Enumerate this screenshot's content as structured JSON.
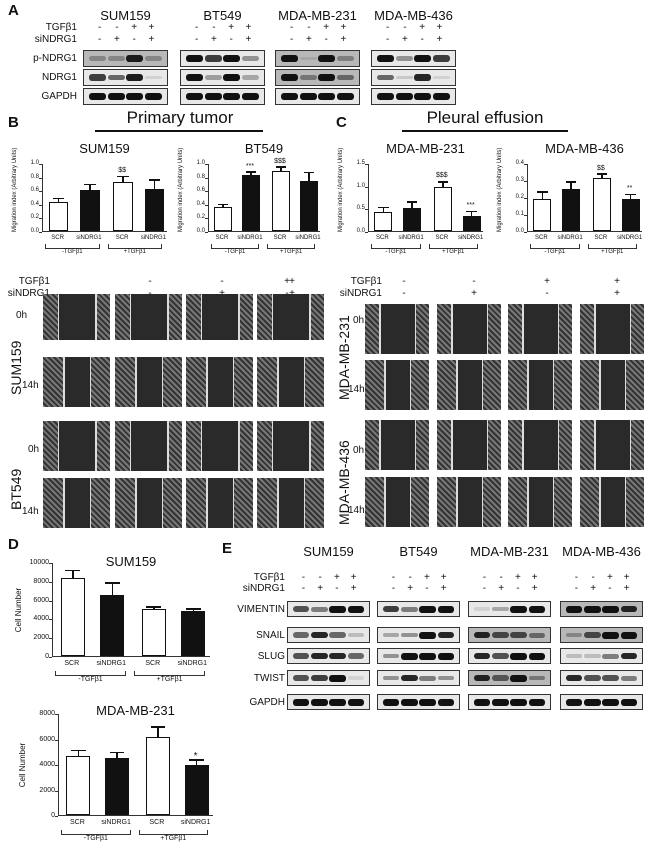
{
  "panelA": {
    "letter": "A",
    "cell_lines": [
      "SUM159",
      "BT549",
      "MDA-MB-231",
      "MDA-MB-436"
    ],
    "treatment_labels": {
      "tgf": "TGFβ1",
      "sindrg1": "siNDRG1"
    },
    "tgf_signs": [
      "-",
      "-",
      "+",
      "+"
    ],
    "sindrg1_signs": [
      "-",
      "+",
      "-",
      "+"
    ],
    "rows": [
      "p-NDRG1",
      "NDRG1",
      "GAPDH"
    ]
  },
  "panelB": {
    "letter": "B",
    "section_title": "Primary tumor"
  },
  "panelC": {
    "letter": "C",
    "section_title": "Pleural effusion"
  },
  "scratch": {
    "tgf_label": "TGFβ1",
    "sindrg1_label": "siNDRG1",
    "tgf_signs": [
      "-",
      "-",
      "+",
      "+"
    ],
    "sindrg1_signs": [
      "-",
      "+",
      "-",
      "+"
    ],
    "left_cell_lines": [
      "SUM159",
      "BT549"
    ],
    "right_cell_lines": [
      "MDA-MB-231",
      "MDA-MB-436"
    ],
    "times": [
      "0h",
      "14h"
    ]
  },
  "panelD": {
    "letter": "D"
  },
  "panelE": {
    "letter": "E",
    "cell_lines": [
      "SUM159",
      "BT549",
      "MDA-MB-231",
      "MDA-MB-436"
    ],
    "treatment_labels": {
      "tgf": "TGFβ1",
      "sindrg1": "siNDRG1"
    },
    "tgf_signs": [
      "-",
      "-",
      "+",
      "+"
    ],
    "sindrg1_signs": [
      "-",
      "+",
      "-",
      "+"
    ],
    "rows": [
      "VIMENTIN",
      "SNAIL",
      "SLUG",
      "TWIST",
      "GAPDH"
    ]
  },
  "chart_data": [
    {
      "id": "B-SUM159",
      "type": "bar",
      "title": "SUM159",
      "ylabel": "Migration index (Arbitrary Units)",
      "ylim": [
        0,
        1.0
      ],
      "yticks": [
        "0.0",
        "0.2",
        "0.4",
        "0.6",
        "0.8",
        "1.0"
      ],
      "categories": [
        "SCR",
        "siNDRG1",
        "SCR",
        "siNDRG1"
      ],
      "groups": [
        "-TGFβ1",
        "+TGFβ1"
      ],
      "values": [
        0.42,
        0.6,
        0.72,
        0.62
      ],
      "errors": [
        0.05,
        0.07,
        0.07,
        0.12
      ],
      "fills": [
        "white",
        "black",
        "white",
        "black"
      ],
      "annotations": [
        "",
        "",
        "$$",
        ""
      ]
    },
    {
      "id": "B-BT549",
      "type": "bar",
      "title": "BT549",
      "ylabel": "Migration index (Arbitrary Units)",
      "ylim": [
        0,
        1.0
      ],
      "yticks": [
        "0.0",
        "0.2",
        "0.4",
        "0.6",
        "0.8",
        "1.0"
      ],
      "categories": [
        "SCR",
        "siNDRG1",
        "SCR",
        "siNDRG1"
      ],
      "groups": [
        "-TGFβ1",
        "+TGFβ1"
      ],
      "values": [
        0.35,
        0.82,
        0.88,
        0.74
      ],
      "errors": [
        0.03,
        0.04,
        0.05,
        0.11
      ],
      "fills": [
        "white",
        "black",
        "white",
        "black"
      ],
      "annotations": [
        "",
        "***",
        "$$$",
        ""
      ]
    },
    {
      "id": "C-MDA-MB-231",
      "type": "bar",
      "title": "MDA-MB-231",
      "ylabel": "Migration index (Arbitrary Units)",
      "ylim": [
        0,
        1.5
      ],
      "yticks": [
        "0.0",
        "0.5",
        "1.0",
        "1.5"
      ],
      "categories": [
        "SCR",
        "siNDRG1",
        "SCR",
        "siNDRG1"
      ],
      "groups": [
        "-TGFβ1",
        "+TGFβ1"
      ],
      "values": [
        0.43,
        0.5,
        0.97,
        0.33
      ],
      "errors": [
        0.07,
        0.12,
        0.1,
        0.08
      ],
      "fills": [
        "white",
        "black",
        "white",
        "black"
      ],
      "annotations": [
        "",
        "",
        "$$$",
        "***"
      ]
    },
    {
      "id": "C-MDA-MB-436",
      "type": "bar",
      "title": "MDA-MB-436",
      "ylabel": "Migration index (Arbitrary Units)",
      "ylim": [
        0,
        0.4
      ],
      "yticks": [
        "0.0",
        "0.1",
        "0.2",
        "0.3",
        "0.4"
      ],
      "categories": [
        "SCR",
        "siNDRG1",
        "SCR",
        "siNDRG1"
      ],
      "groups": [
        "-TGFβ1",
        "+TGFβ1"
      ],
      "values": [
        0.19,
        0.25,
        0.31,
        0.19
      ],
      "errors": [
        0.035,
        0.035,
        0.02,
        0.02
      ],
      "fills": [
        "white",
        "black",
        "white",
        "black"
      ],
      "annotations": [
        "",
        "",
        "$$",
        "**"
      ]
    },
    {
      "id": "D-SUM159",
      "type": "bar",
      "title": "SUM159",
      "ylabel": "Cell Number",
      "ylim": [
        0,
        10000
      ],
      "yticks": [
        "0",
        "2000",
        "4000",
        "6000",
        "8000",
        "10000"
      ],
      "categories": [
        "SCR",
        "siNDRG1",
        "SCR",
        "siNDRG1"
      ],
      "groups": [
        "-TGFβ1",
        "+TGFβ1"
      ],
      "values": [
        8250,
        6450,
        4950,
        4800
      ],
      "errors": [
        750,
        1250,
        200,
        100
      ],
      "fills": [
        "white",
        "black",
        "white",
        "black"
      ],
      "annotations": [
        "",
        "",
        "",
        ""
      ]
    },
    {
      "id": "D-MDA-MB-231",
      "type": "bar",
      "title": "MDA-MB-231",
      "ylabel": "Cell Number",
      "ylim": [
        0,
        8000
      ],
      "yticks": [
        "0",
        "2000",
        "4000",
        "6000",
        "8000"
      ],
      "categories": [
        "SCR",
        "siNDRG1",
        "SCR",
        "siNDRG1"
      ],
      "groups": [
        "-TGFβ1",
        "+TGFβ1"
      ],
      "values": [
        4650,
        4450,
        6100,
        3900
      ],
      "errors": [
        350,
        400,
        750,
        350
      ],
      "fills": [
        "white",
        "black",
        "white",
        "black"
      ],
      "annotations": [
        "",
        "",
        "",
        "*"
      ]
    }
  ]
}
